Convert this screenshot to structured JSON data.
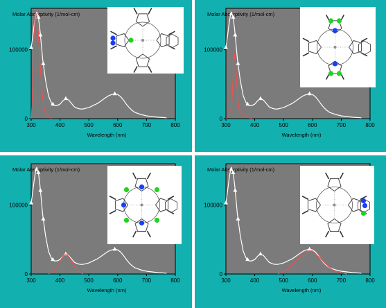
{
  "colors": {
    "panel_bg": "#13b0b0",
    "plot_bg": "#7b7b7b",
    "spectrum_line": "#ffffff",
    "highlight_line": "#ff4a4a",
    "separator": "#ffffff",
    "nitrogen_highlight": "#1a3cff",
    "carbon_highlight": "#1fd41f"
  },
  "chart_data": [
    {
      "type": "line",
      "ylabel": "Molar Absorptivity  (1/mol-cm)",
      "xlabel": "Wavelength  (nm)",
      "xlim": [
        300,
        800
      ],
      "ylim": [
        0,
        160000
      ],
      "xticks": [
        300,
        400,
        500,
        600,
        700,
        800
      ],
      "yticks": [
        0,
        100000
      ],
      "ytick_labels": [
        "0",
        "100000"
      ],
      "grid": false,
      "series": [
        {
          "role": "total",
          "color": "#ffffff",
          "x": [
            300,
            305,
            310,
            315,
            320,
            325,
            330,
            335,
            340,
            350,
            360,
            370,
            380,
            390,
            400,
            410,
            420,
            430,
            440,
            450,
            460,
            470,
            480,
            490,
            500,
            510,
            520,
            530,
            540,
            550,
            560,
            570,
            580,
            590,
            600,
            610,
            620,
            630,
            640,
            650,
            660,
            680,
            700,
            720,
            740,
            760,
            770
          ],
          "y": [
            103000,
            118000,
            135000,
            148000,
            154000,
            147000,
            130000,
            108000,
            86000,
            55000,
            33000,
            23000,
            19000,
            19000,
            21000,
            26000,
            29000,
            27000,
            22000,
            17000,
            15000,
            14000,
            14000,
            15000,
            16000,
            18000,
            20000,
            22000,
            25000,
            28000,
            31000,
            33500,
            35000,
            36000,
            35000,
            32000,
            27000,
            21000,
            16000,
            12000,
            9000,
            6000,
            4000,
            3000,
            2000,
            1500,
            1000
          ],
          "markers_x": [
            300,
            318,
            325,
            332,
            342,
            375,
            420,
            590
          ]
        },
        {
          "role": "contribution",
          "color": "#ff4a4a",
          "x": [
            300,
            305,
            308,
            312,
            316,
            320,
            324,
            328,
            332,
            336,
            340,
            345,
            350,
            355,
            360,
            370
          ],
          "y": [
            0,
            40000,
            100000,
            140000,
            154000,
            148000,
            128000,
            100000,
            72000,
            48000,
            30000,
            15000,
            8000,
            4000,
            2000,
            0
          ]
        }
      ],
      "structure": {
        "highlight": "left pyrrole",
        "nitrogen_color": "#1a3cff",
        "carbon_color": "#1fd41f"
      }
    },
    {
      "type": "line",
      "ylabel": "Molar Absorptivity  (1/mol-cm)",
      "xlabel": "Wavelength  (nm)",
      "xlim": [
        300,
        800
      ],
      "ylim": [
        0,
        160000
      ],
      "xticks": [
        300,
        400,
        500,
        600,
        700,
        800
      ],
      "yticks": [
        0,
        100000
      ],
      "ytick_labels": [
        "0",
        "100000"
      ],
      "grid": false,
      "series": [
        {
          "role": "total",
          "color": "#ffffff",
          "x": [
            300,
            305,
            310,
            315,
            320,
            325,
            330,
            335,
            340,
            350,
            360,
            370,
            380,
            390,
            400,
            410,
            420,
            430,
            440,
            450,
            460,
            470,
            480,
            490,
            500,
            510,
            520,
            530,
            540,
            550,
            560,
            570,
            580,
            590,
            600,
            610,
            620,
            630,
            640,
            650,
            660,
            680,
            700,
            720,
            740,
            760,
            770
          ],
          "y": [
            103000,
            118000,
            135000,
            148000,
            154000,
            147000,
            130000,
            108000,
            86000,
            55000,
            33000,
            23000,
            19000,
            19000,
            21000,
            26000,
            29000,
            27000,
            22000,
            17000,
            15000,
            14000,
            14000,
            15000,
            16000,
            18000,
            20000,
            22000,
            25000,
            28000,
            31000,
            33500,
            35000,
            36000,
            35000,
            32000,
            27000,
            21000,
            16000,
            12000,
            9000,
            6000,
            4000,
            3000,
            2000,
            1500,
            1000
          ],
          "markers_x": [
            300,
            318,
            325,
            332,
            342,
            375,
            420,
            590
          ]
        },
        {
          "role": "contribution",
          "color": "#ff4a4a",
          "x": [
            300,
            310,
            320,
            325,
            330,
            335,
            340,
            345,
            350,
            360,
            370,
            380,
            390
          ],
          "y": [
            0,
            5000,
            15000,
            60000,
            95000,
            72000,
            35000,
            15000,
            10000,
            6000,
            3000,
            1000,
            0
          ]
        }
      ],
      "structure": {
        "highlight": "top and bottom pyrroles",
        "nitrogen_color": "#1a3cff",
        "carbon_color": "#1fd41f"
      }
    },
    {
      "type": "line",
      "ylabel": "Molar Absorptivity  (1/mol-cm)",
      "xlabel": "Wavelength  (nm)",
      "xlim": [
        300,
        800
      ],
      "ylim": [
        0,
        160000
      ],
      "xticks": [
        300,
        400,
        500,
        600,
        700,
        800
      ],
      "yticks": [
        0,
        100000
      ],
      "ytick_labels": [
        "0",
        "100000"
      ],
      "grid": false,
      "series": [
        {
          "role": "total",
          "color": "#ffffff",
          "x": [
            300,
            305,
            310,
            315,
            320,
            325,
            330,
            335,
            340,
            350,
            360,
            370,
            380,
            390,
            400,
            410,
            420,
            430,
            440,
            450,
            460,
            470,
            480,
            490,
            500,
            510,
            520,
            530,
            540,
            550,
            560,
            570,
            580,
            590,
            600,
            610,
            620,
            630,
            640,
            650,
            660,
            680,
            700,
            720,
            740,
            760,
            770
          ],
          "y": [
            103000,
            118000,
            135000,
            148000,
            154000,
            147000,
            130000,
            108000,
            86000,
            55000,
            33000,
            23000,
            19000,
            19000,
            21000,
            26000,
            29000,
            27000,
            22000,
            17000,
            15000,
            14000,
            14000,
            15000,
            16000,
            18000,
            20000,
            22000,
            25000,
            28000,
            31000,
            33500,
            35000,
            36000,
            35000,
            32000,
            27000,
            21000,
            16000,
            12000,
            9000,
            6000,
            4000,
            3000,
            2000,
            1500,
            1000
          ],
          "markers_x": [
            300,
            318,
            325,
            332,
            342,
            375,
            420,
            590
          ]
        },
        {
          "role": "contribution",
          "color": "#ff4a4a",
          "x": [
            360,
            370,
            380,
            390,
            400,
            410,
            420,
            430,
            440,
            450,
            460,
            470,
            480
          ],
          "y": [
            0,
            1500,
            5000,
            11000,
            19000,
            26000,
            29000,
            26000,
            19000,
            11000,
            5000,
            1500,
            0
          ]
        }
      ],
      "structure": {
        "highlight": "meso carbons",
        "nitrogen_color": "#1a3cff",
        "carbon_color": "#1fd41f"
      }
    },
    {
      "type": "line",
      "ylabel": "Molar Absorptivity  (1/mol-cm)",
      "xlabel": "Wavelength  (nm)",
      "xlim": [
        300,
        800
      ],
      "ylim": [
        0,
        160000
      ],
      "xticks": [
        300,
        400,
        500,
        600,
        700,
        800
      ],
      "yticks": [
        0,
        100000
      ],
      "ytick_labels": [
        "0",
        "100000"
      ],
      "grid": false,
      "series": [
        {
          "role": "total",
          "color": "#ffffff",
          "x": [
            300,
            305,
            310,
            315,
            320,
            325,
            330,
            335,
            340,
            350,
            360,
            370,
            380,
            390,
            400,
            410,
            420,
            430,
            440,
            450,
            460,
            470,
            480,
            490,
            500,
            510,
            520,
            530,
            540,
            550,
            560,
            570,
            580,
            590,
            600,
            610,
            620,
            630,
            640,
            650,
            660,
            680,
            700,
            720,
            740,
            760,
            770
          ],
          "y": [
            103000,
            118000,
            135000,
            148000,
            154000,
            147000,
            130000,
            108000,
            86000,
            55000,
            33000,
            23000,
            19000,
            19000,
            21000,
            26000,
            29000,
            27000,
            22000,
            17000,
            15000,
            14000,
            14000,
            15000,
            16000,
            18000,
            20000,
            22000,
            25000,
            28000,
            31000,
            33500,
            35000,
            36000,
            35000,
            32000,
            27000,
            21000,
            16000,
            12000,
            9000,
            6000,
            4000,
            3000,
            2000,
            1500,
            1000
          ],
          "markers_x": [
            300,
            318,
            325,
            332,
            342,
            375,
            420,
            590
          ]
        },
        {
          "role": "contribution",
          "color": "#ff4a4a",
          "x": [
            480,
            500,
            520,
            540,
            560,
            580,
            590,
            600,
            620,
            640,
            660,
            680,
            700,
            720
          ],
          "y": [
            0,
            3000,
            9000,
            17000,
            26000,
            32000,
            34000,
            33000,
            26000,
            17000,
            9000,
            4000,
            1500,
            0
          ]
        }
      ],
      "structure": {
        "highlight": "right pyrrole",
        "nitrogen_color": "#1a3cff",
        "carbon_color": "#1fd41f"
      }
    }
  ]
}
